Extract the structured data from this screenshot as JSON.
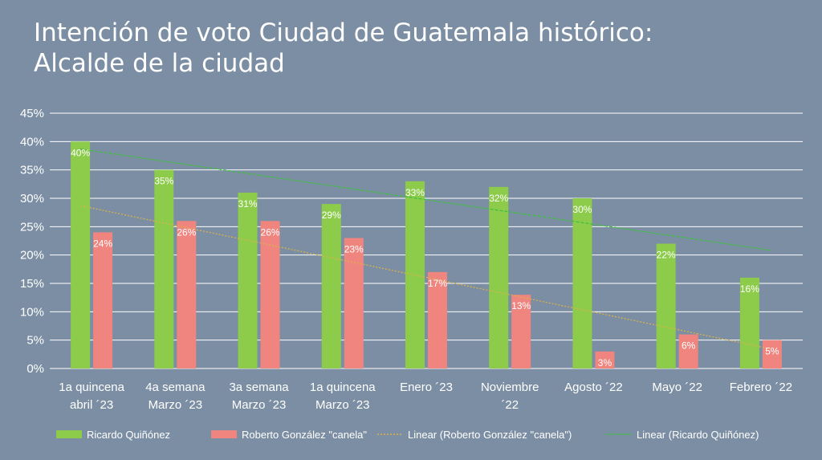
{
  "title": {
    "line1": "Intención de voto Ciudad de Guatemala histórico:",
    "line2": "Alcalde de la ciudad"
  },
  "colors": {
    "background": "#7b8ea3",
    "quinonez": "#8dcc4a",
    "gonzalez": "#f08580",
    "trend_gonzalez": "#d9b24a",
    "trend_quinonez": "#3fbf3f",
    "grid": "#ffffff"
  },
  "chart_data": {
    "type": "bar",
    "title": "Intención de voto Ciudad de Guatemala histórico: Alcalde de la ciudad",
    "xlabel": "",
    "ylabel": "",
    "ylim": [
      0,
      45
    ],
    "yticks": [
      "0%",
      "5%",
      "10%",
      "15%",
      "20%",
      "25%",
      "30%",
      "35%",
      "40%",
      "45%"
    ],
    "grid": true,
    "legend_position": "bottom",
    "categories": [
      [
        "1a quincena",
        "abril ´23"
      ],
      [
        "4a semana",
        "Marzo ´23"
      ],
      [
        "3a semana",
        "Marzo ´23"
      ],
      [
        "1a quincena",
        "Marzo ´23"
      ],
      [
        "Enero ´23"
      ],
      [
        "Noviembre",
        "´22"
      ],
      [
        "Agosto ´22"
      ],
      [
        "Mayo ´22"
      ],
      [
        "Febrero ´22"
      ]
    ],
    "series": [
      {
        "name": "Ricardo Quiñónez",
        "values": [
          40,
          35,
          31,
          29,
          33,
          32,
          30,
          22,
          16
        ],
        "labels": [
          "40%",
          "35%",
          "31%",
          "29%",
          "33%",
          "32%",
          "30%",
          "22%",
          "16%"
        ]
      },
      {
        "name": "Roberto González \"canela\"",
        "values": [
          24,
          26,
          26,
          23,
          17,
          13,
          3,
          6,
          5
        ],
        "labels": [
          "24%",
          "26%",
          "26%",
          "23%",
          "17%",
          "13%",
          "3%",
          "6%",
          "5%"
        ]
      }
    ],
    "trendlines": [
      {
        "name": "Linear (Roberto González \"canela\")",
        "start": 28.7,
        "end": 3.4
      },
      {
        "name": "Linear (Ricardo Quiñónez)",
        "start": 38.7,
        "end": 20.8
      }
    ],
    "legend": [
      "Ricardo Quiñónez",
      "Roberto González \"canela\"",
      "Linear (Roberto González \"canela\")",
      "Linear (Ricardo Quiñónez)"
    ]
  }
}
